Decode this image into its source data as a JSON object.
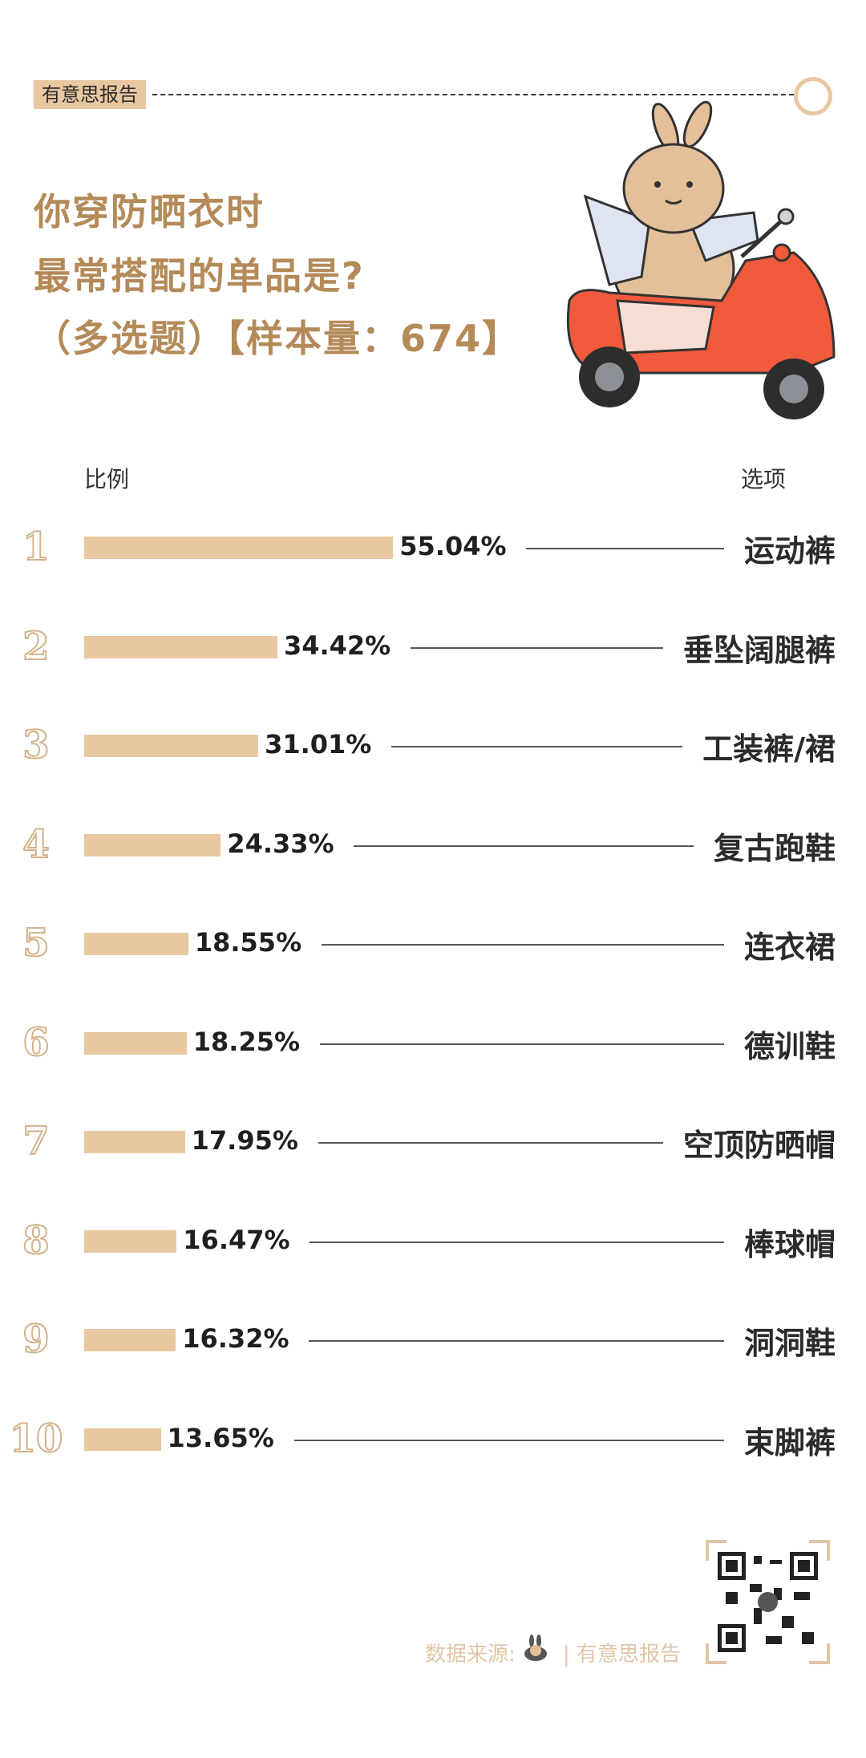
{
  "header": {
    "brand": "有意思报告",
    "title_lines": [
      "你穿防晒衣时",
      "最常搭配的单品是?",
      "（多选题）【样本量：674】"
    ]
  },
  "columns": {
    "left": "比例",
    "right": "选项"
  },
  "chart_data": {
    "type": "bar",
    "orientation": "horizontal",
    "title": "你穿防晒衣时 最常搭配的单品是?（多选题）【样本量：674】",
    "xlabel": "比例",
    "ylabel": "选项",
    "xlim": [
      0,
      100
    ],
    "unit": "%",
    "categories": [
      "运动裤",
      "垂坠阔腿裤",
      "工装裤/裙",
      "复古跑鞋",
      "连衣裙",
      "德训鞋",
      "空顶防晒帽",
      "棒球帽",
      "洞洞鞋",
      "束脚裤"
    ],
    "ranks": [
      "1",
      "2",
      "3",
      "4",
      "5",
      "6",
      "7",
      "8",
      "9",
      "10"
    ],
    "values": [
      55.04,
      34.42,
      31.01,
      24.33,
      18.55,
      18.25,
      17.95,
      16.47,
      16.32,
      13.65
    ],
    "value_labels": [
      "55.04%",
      "34.42%",
      "31.01%",
      "24.33%",
      "18.55%",
      "18.25%",
      "17.95%",
      "16.47%",
      "16.32%",
      "13.65%"
    ],
    "bar_color": "#e9c7a1"
  },
  "footer": {
    "source_label": "数据来源:",
    "source_name": "| 有意思报告"
  },
  "colors": {
    "accent": "#b48a59",
    "bar": "#e9c7a1",
    "scooter": "#f25a3c"
  }
}
